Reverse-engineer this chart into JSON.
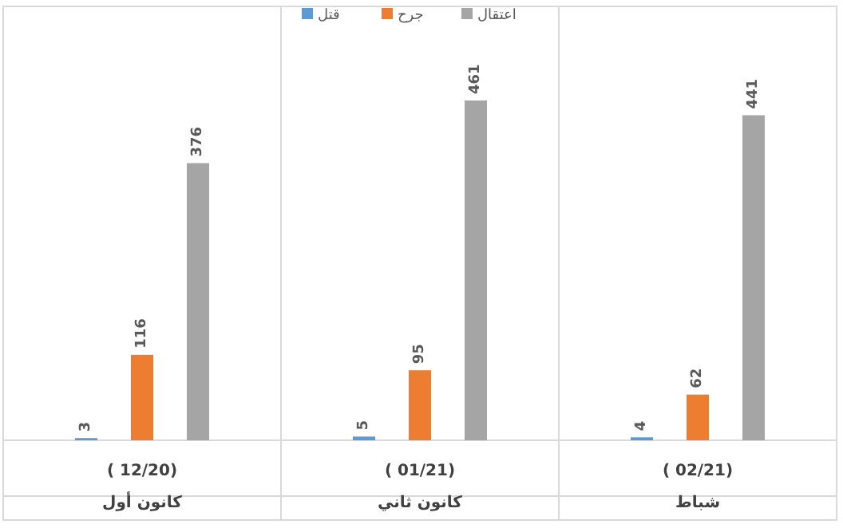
{
  "chart_data": {
    "type": "bar",
    "categories": [
      "( 12/20)\nكانون أول",
      "( 01/21)\nكانون ثاني",
      "( 02/21)\nشباط"
    ],
    "series": [
      {
        "name": "قتل",
        "color": "#5b9bd5",
        "values": [
          3,
          5,
          4
        ]
      },
      {
        "name": "جرح",
        "color": "#ed7d31",
        "values": [
          116,
          95,
          62
        ]
      },
      {
        "name": "اعتقال",
        "color": "#a5a5a5",
        "values": [
          376,
          461,
          441
        ]
      }
    ],
    "data_labels": true,
    "legend": "top",
    "grid": false
  }
}
